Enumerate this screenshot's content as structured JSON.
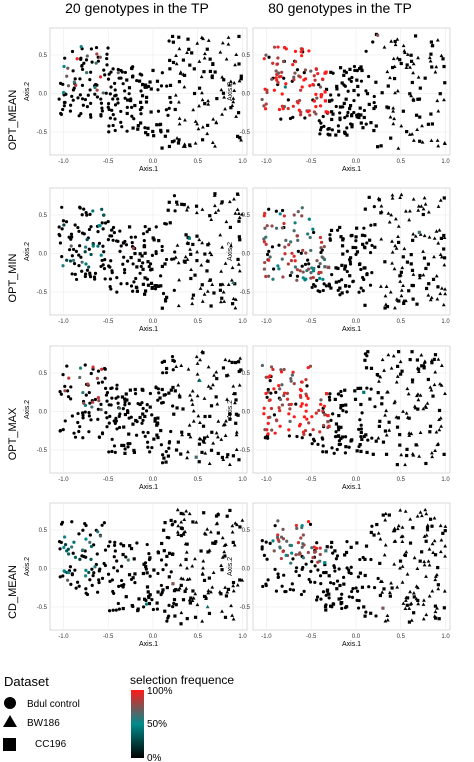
{
  "figure": {
    "column_titles": [
      "20 genotypes in the TP",
      "80 genotypes in the TP"
    ],
    "row_labels": [
      "OPT_MEAN",
      "OPT_MIN",
      "OPT_MAX",
      "CD_MEAN"
    ]
  },
  "legend": {
    "dataset_title": "Dataset",
    "datasets": [
      {
        "name": "Bdul control",
        "shape": "circle"
      },
      {
        "name": "BW186",
        "shape": "triangle"
      },
      {
        "name": "CC196",
        "shape": "square"
      }
    ],
    "frequence_title": "selection frequence",
    "frequence_ticks": [
      "100%",
      "50%",
      "0%"
    ],
    "gradient_colors": [
      "#000000",
      "#008b8b",
      "#ff1a1a"
    ]
  },
  "chart_data": [
    {
      "type": "scatter",
      "row": "OPT_MEAN",
      "column": "20 genotypes in the TP",
      "xlabel": "Axis.1",
      "ylabel": "Axis.2",
      "xlim": [
        -1.15,
        1.05
      ],
      "ylim": [
        -0.8,
        0.85
      ],
      "x_ticks": [
        "-1.0",
        "-0.5",
        "0.0",
        "0.5",
        "1.0"
      ],
      "y_ticks": [
        "0.5",
        "0.0",
        "-0.5"
      ],
      "grid": true,
      "seed": 101,
      "hotspot": {
        "x": [
          -1.0,
          -0.55
        ],
        "y": [
          0.0,
          0.65
        ],
        "frac_selected": 0.45,
        "mean_freq": 0.75
      }
    },
    {
      "type": "scatter",
      "row": "OPT_MEAN",
      "column": "80 genotypes in the TP",
      "xlabel": "Axis.1",
      "ylabel": "Axis.2",
      "xlim": [
        -1.15,
        1.05
      ],
      "ylim": [
        -0.8,
        0.85
      ],
      "x_ticks": [
        "-1.0",
        "-0.5",
        "0.0",
        "0.5",
        "1.0"
      ],
      "y_ticks": [
        "0.5",
        "0.0",
        "-0.5"
      ],
      "grid": true,
      "seed": 102,
      "hotspot": {
        "x": [
          -1.05,
          -0.3
        ],
        "y": [
          -0.3,
          0.75
        ],
        "frac_selected": 0.85,
        "mean_freq": 0.95
      }
    },
    {
      "type": "scatter",
      "row": "OPT_MIN",
      "column": "20 genotypes in the TP",
      "xlabel": "Axis.1",
      "ylabel": "Axis.2",
      "xlim": [
        -1.15,
        1.05
      ],
      "ylim": [
        -0.8,
        0.85
      ],
      "x_ticks": [
        "-1.0",
        "-0.5",
        "0.0",
        "0.5",
        "1.0"
      ],
      "y_ticks": [
        "0.5",
        "0.0",
        "-0.5"
      ],
      "grid": true,
      "seed": 103,
      "hotspot": {
        "x": [
          -1.0,
          -0.55
        ],
        "y": [
          -0.2,
          0.6
        ],
        "frac_selected": 0.4,
        "mean_freq": 0.45
      }
    },
    {
      "type": "scatter",
      "row": "OPT_MIN",
      "column": "80 genotypes in the TP",
      "xlabel": "Axis.1",
      "ylabel": "Axis.2",
      "xlim": [
        -1.15,
        1.05
      ],
      "ylim": [
        -0.8,
        0.85
      ],
      "x_ticks": [
        "-1.0",
        "-0.5",
        "0.0",
        "0.5",
        "1.0"
      ],
      "y_ticks": [
        "0.5",
        "0.0",
        "-0.5"
      ],
      "grid": true,
      "seed": 104,
      "hotspot": {
        "x": [
          -1.05,
          -0.3
        ],
        "y": [
          -0.35,
          0.7
        ],
        "frac_selected": 0.8,
        "mean_freq": 0.7
      }
    },
    {
      "type": "scatter",
      "row": "OPT_MAX",
      "column": "20 genotypes in the TP",
      "xlabel": "Axis.1",
      "ylabel": "Axis.2",
      "xlim": [
        -1.15,
        1.05
      ],
      "ylim": [
        -0.8,
        0.85
      ],
      "x_ticks": [
        "-1.0",
        "-0.5",
        "0.0",
        "0.5",
        "1.0"
      ],
      "y_ticks": [
        "0.5",
        "0.0",
        "-0.5"
      ],
      "grid": true,
      "seed": 105,
      "hotspot": {
        "x": [
          -1.0,
          -0.55
        ],
        "y": [
          0.0,
          0.65
        ],
        "frac_selected": 0.45,
        "mean_freq": 0.7
      }
    },
    {
      "type": "scatter",
      "row": "OPT_MAX",
      "column": "80 genotypes in the TP",
      "xlabel": "Axis.1",
      "ylabel": "Axis.2",
      "xlim": [
        -1.15,
        1.05
      ],
      "ylim": [
        -0.8,
        0.85
      ],
      "x_ticks": [
        "-1.0",
        "-0.5",
        "0.0",
        "0.5",
        "1.0"
      ],
      "y_ticks": [
        "0.5",
        "0.0",
        "-0.5"
      ],
      "grid": true,
      "seed": 106,
      "hotspot": {
        "x": [
          -1.05,
          -0.3
        ],
        "y": [
          -0.3,
          0.75
        ],
        "frac_selected": 0.85,
        "mean_freq": 0.9
      }
    },
    {
      "type": "scatter",
      "row": "CD_MEAN",
      "column": "20 genotypes in the TP",
      "xlabel": "Axis.1",
      "ylabel": "Axis.2",
      "xlim": [
        -1.15,
        1.05
      ],
      "ylim": [
        -0.8,
        0.85
      ],
      "x_ticks": [
        "-1.0",
        "-0.5",
        "0.0",
        "0.5",
        "1.0"
      ],
      "y_ticks": [
        "0.5",
        "0.0",
        "-0.5"
      ],
      "grid": true,
      "seed": 107,
      "hotspot": {
        "x": [
          -1.0,
          -0.55
        ],
        "y": [
          -0.2,
          0.6
        ],
        "frac_selected": 0.5,
        "mean_freq": 0.45
      }
    },
    {
      "type": "scatter",
      "row": "CD_MEAN",
      "column": "80 genotypes in the TP",
      "xlabel": "Axis.1",
      "ylabel": "Axis.2",
      "xlim": [
        -1.15,
        1.05
      ],
      "ylim": [
        -0.8,
        0.85
      ],
      "x_ticks": [
        "-1.0",
        "-0.5",
        "0.0",
        "0.5",
        "1.0"
      ],
      "y_ticks": [
        "0.5",
        "0.0",
        "-0.5"
      ],
      "grid": true,
      "seed": 108,
      "hotspot": {
        "x": [
          -0.95,
          -0.3
        ],
        "y": [
          0.05,
          0.65
        ],
        "frac_selected": 0.8,
        "mean_freq": 0.75
      }
    }
  ]
}
